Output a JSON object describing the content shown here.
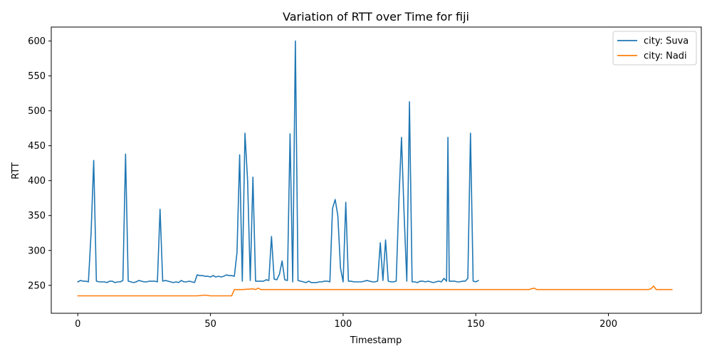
{
  "chart_data": {
    "type": "line",
    "title": "Variation of RTT over Time for fiji",
    "xlabel": "Timestamp",
    "ylabel": "RTT",
    "xlim": [
      -10,
      235
    ],
    "ylim": [
      210,
      620
    ],
    "xticks": [
      0,
      50,
      100,
      150,
      200
    ],
    "yticks": [
      250,
      300,
      350,
      400,
      450,
      500,
      550,
      600
    ],
    "grid": false,
    "legend_position": "top-right",
    "series": [
      {
        "name": "city: Suva",
        "color": "#1f77b4",
        "points": [
          [
            0,
            255
          ],
          [
            1,
            257
          ],
          [
            2,
            256
          ],
          [
            3,
            256
          ],
          [
            4,
            255
          ],
          [
            5,
            324
          ],
          [
            6,
            429
          ],
          [
            7,
            256
          ],
          [
            8,
            255
          ],
          [
            9,
            255
          ],
          [
            10,
            255
          ],
          [
            11,
            254
          ],
          [
            12,
            256
          ],
          [
            13,
            256
          ],
          [
            14,
            254
          ],
          [
            15,
            255
          ],
          [
            16,
            255
          ],
          [
            17,
            257
          ],
          [
            18,
            438
          ],
          [
            19,
            256
          ],
          [
            20,
            255
          ],
          [
            21,
            254
          ],
          [
            22,
            255
          ],
          [
            23,
            257
          ],
          [
            24,
            256
          ],
          [
            25,
            255
          ],
          [
            26,
            255
          ],
          [
            27,
            256
          ],
          [
            28,
            256
          ],
          [
            29,
            256
          ],
          [
            30,
            255
          ],
          [
            31,
            359
          ],
          [
            32,
            256
          ],
          [
            33,
            257
          ],
          [
            34,
            256
          ],
          [
            35,
            255
          ],
          [
            36,
            254
          ],
          [
            37,
            255
          ],
          [
            38,
            254
          ],
          [
            39,
            257
          ],
          [
            40,
            255
          ],
          [
            41,
            255
          ],
          [
            42,
            256
          ],
          [
            43,
            255
          ],
          [
            44,
            254
          ],
          [
            45,
            265
          ],
          [
            46,
            264
          ],
          [
            47,
            264
          ],
          [
            48,
            263
          ],
          [
            49,
            263
          ],
          [
            50,
            262
          ],
          [
            51,
            264
          ],
          [
            52,
            262
          ],
          [
            53,
            263
          ],
          [
            54,
            262
          ],
          [
            55,
            263
          ],
          [
            56,
            265
          ],
          [
            57,
            264
          ],
          [
            58,
            264
          ],
          [
            59,
            263
          ],
          [
            60,
            297
          ],
          [
            61,
            437
          ],
          [
            62,
            256
          ],
          [
            63,
            468
          ],
          [
            64,
            400
          ],
          [
            65,
            257
          ],
          [
            66,
            405
          ],
          [
            67,
            256
          ],
          [
            68,
            256
          ],
          [
            69,
            256
          ],
          [
            70,
            256
          ],
          [
            71,
            258
          ],
          [
            72,
            257
          ],
          [
            73,
            320
          ],
          [
            74,
            259
          ],
          [
            75,
            258
          ],
          [
            76,
            266
          ],
          [
            77,
            285
          ],
          [
            78,
            258
          ],
          [
            79,
            257
          ],
          [
            80,
            467
          ],
          [
            81,
            255
          ],
          [
            82,
            600
          ],
          [
            83,
            257
          ],
          [
            84,
            256
          ],
          [
            85,
            255
          ],
          [
            86,
            254
          ],
          [
            87,
            256
          ],
          [
            88,
            254
          ],
          [
            89,
            254
          ],
          [
            90,
            254
          ],
          [
            91,
            255
          ],
          [
            92,
            255
          ],
          [
            93,
            256
          ],
          [
            94,
            256
          ],
          [
            95,
            255
          ],
          [
            96,
            360
          ],
          [
            97,
            373
          ],
          [
            98,
            350
          ],
          [
            99,
            275
          ],
          [
            100,
            255
          ],
          [
            101,
            369
          ],
          [
            102,
            256
          ],
          [
            103,
            256
          ],
          [
            104,
            255
          ],
          [
            105,
            255
          ],
          [
            106,
            255
          ],
          [
            107,
            255
          ],
          [
            108,
            256
          ],
          [
            109,
            257
          ],
          [
            110,
            256
          ],
          [
            111,
            255
          ],
          [
            112,
            255
          ],
          [
            113,
            256
          ],
          [
            114,
            311
          ],
          [
            115,
            257
          ],
          [
            116,
            315
          ],
          [
            117,
            256
          ],
          [
            118,
            255
          ],
          [
            119,
            255
          ],
          [
            120,
            256
          ],
          [
            121,
            370
          ],
          [
            122,
            462
          ],
          [
            123,
            350
          ],
          [
            124,
            256
          ],
          [
            125,
            513
          ],
          [
            126,
            255
          ],
          [
            127,
            255
          ],
          [
            128,
            254
          ],
          [
            129,
            256
          ],
          [
            130,
            256
          ],
          [
            131,
            255
          ],
          [
            132,
            256
          ],
          [
            133,
            255
          ],
          [
            134,
            254
          ],
          [
            135,
            255
          ],
          [
            136,
            256
          ],
          [
            137,
            255
          ],
          [
            138,
            260
          ],
          [
            139,
            256
          ],
          [
            139.5,
            462
          ],
          [
            140,
            256
          ],
          [
            141,
            256
          ],
          [
            142,
            256
          ],
          [
            143,
            255
          ],
          [
            144,
            255
          ],
          [
            145,
            256
          ],
          [
            146,
            256
          ],
          [
            147,
            260
          ],
          [
            148,
            468
          ],
          [
            149,
            256
          ],
          [
            150,
            255
          ],
          [
            151,
            257
          ]
        ]
      },
      {
        "name": "city: Nadi",
        "color": "#ff7f0e",
        "points": [
          [
            0,
            235
          ],
          [
            10,
            235
          ],
          [
            20,
            235
          ],
          [
            30,
            235
          ],
          [
            40,
            235
          ],
          [
            45,
            235
          ],
          [
            48,
            236
          ],
          [
            50,
            235
          ],
          [
            55,
            235
          ],
          [
            58,
            235
          ],
          [
            59,
            244
          ],
          [
            62,
            244
          ],
          [
            66,
            245
          ],
          [
            67,
            244
          ],
          [
            68,
            246
          ],
          [
            69,
            244
          ],
          [
            80,
            244
          ],
          [
            90,
            244
          ],
          [
            100,
            244
          ],
          [
            110,
            244
          ],
          [
            120,
            244
          ],
          [
            130,
            244
          ],
          [
            140,
            244
          ],
          [
            150,
            244
          ],
          [
            160,
            244
          ],
          [
            170,
            244
          ],
          [
            172,
            246
          ],
          [
            173,
            244
          ],
          [
            180,
            244
          ],
          [
            190,
            244
          ],
          [
            200,
            244
          ],
          [
            210,
            244
          ],
          [
            215,
            244
          ],
          [
            216,
            245
          ],
          [
            217,
            249
          ],
          [
            218,
            244
          ],
          [
            220,
            244
          ],
          [
            224,
            244
          ]
        ]
      }
    ]
  }
}
